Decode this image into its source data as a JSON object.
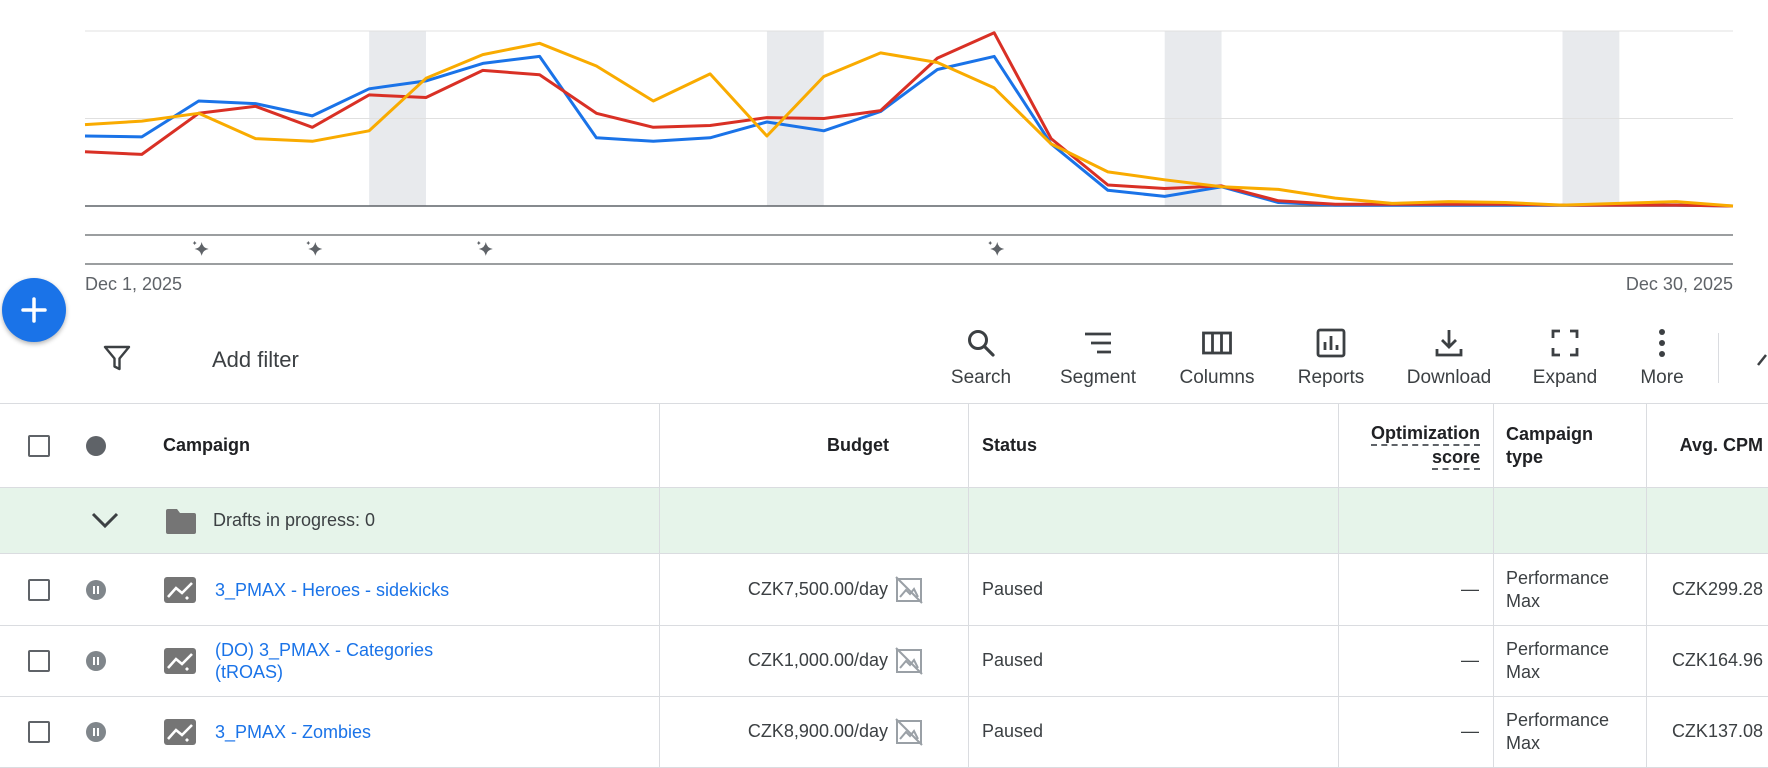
{
  "chart": {
    "date_start": "Dec 1, 2025",
    "date_end": "Dec 30, 2025",
    "series_colors": [
      "#1a73e8",
      "#d93025",
      "#f9ab00"
    ]
  },
  "chart_data": {
    "type": "line",
    "x": [
      "Dec 1",
      "Dec 2",
      "Dec 3",
      "Dec 4",
      "Dec 5",
      "Dec 6",
      "Dec 7",
      "Dec 8",
      "Dec 9",
      "Dec 10",
      "Dec 11",
      "Dec 12",
      "Dec 13",
      "Dec 14",
      "Dec 15",
      "Dec 16",
      "Dec 17",
      "Dec 18",
      "Dec 19",
      "Dec 20",
      "Dec 21",
      "Dec 22",
      "Dec 23",
      "Dec 24",
      "Dec 25",
      "Dec 26",
      "Dec 27",
      "Dec 28",
      "Dec 29",
      "Dec 30"
    ],
    "ylim": [
      0,
      2
    ],
    "grid": true,
    "weekend_bands": [
      "Dec 6",
      "Dec 13",
      "Dec 20",
      "Dec 27"
    ],
    "annotation_days": [
      "Dec 3",
      "Dec 5",
      "Dec 8",
      "Dec 17"
    ],
    "series": [
      {
        "color": "#1a73e8",
        "values": [
          0.8,
          0.79,
          1.2,
          1.17,
          1.03,
          1.34,
          1.43,
          1.63,
          1.71,
          0.78,
          0.74,
          0.78,
          0.96,
          0.86,
          1.08,
          1.56,
          1.71,
          0.71,
          0.18,
          0.11,
          0.22,
          0.04,
          0.01,
          0.01,
          0.01,
          0.01,
          0.01,
          0.01,
          0.01,
          0.0
        ]
      },
      {
        "color": "#d93025",
        "values": [
          0.62,
          0.59,
          1.06,
          1.14,
          0.9,
          1.27,
          1.24,
          1.55,
          1.5,
          1.06,
          0.9,
          0.92,
          1.01,
          1.0,
          1.09,
          1.69,
          1.98,
          0.77,
          0.24,
          0.2,
          0.23,
          0.06,
          0.02,
          0.02,
          0.02,
          0.02,
          0.01,
          0.01,
          0.01,
          0.0
        ]
      },
      {
        "color": "#f9ab00",
        "values": [
          0.93,
          0.97,
          1.06,
          0.77,
          0.74,
          0.86,
          1.46,
          1.73,
          1.86,
          1.6,
          1.2,
          1.51,
          0.8,
          1.48,
          1.75,
          1.64,
          1.35,
          0.71,
          0.39,
          0.3,
          0.22,
          0.19,
          0.09,
          0.03,
          0.05,
          0.04,
          0.01,
          0.03,
          0.05,
          0.0
        ]
      }
    ]
  },
  "toolbar": {
    "add_filter": "Add filter",
    "tools": [
      {
        "label": "Search",
        "icon": "search-icon"
      },
      {
        "label": "Segment",
        "icon": "segment-icon"
      },
      {
        "label": "Columns",
        "icon": "columns-icon"
      },
      {
        "label": "Reports",
        "icon": "reports-icon"
      },
      {
        "label": "Download",
        "icon": "download-icon"
      },
      {
        "label": "Expand",
        "icon": "expand-icon"
      },
      {
        "label": "More",
        "icon": "more-vert-icon"
      }
    ]
  },
  "table": {
    "headers": {
      "campaign": "Campaign",
      "budget": "Budget",
      "status": "Status",
      "optimization_score_1": "Optimization",
      "optimization_score_2": "score",
      "campaign_type_1": "Campaign",
      "campaign_type_2": "type",
      "avg_cpm": "Avg. CPM"
    },
    "drafts_label": "Drafts in progress: 0",
    "rows": [
      {
        "name_1": "3_PMAX - Heroes - sidekicks",
        "name_2": "",
        "budget": "CZK7,500.00/day",
        "status": "Paused",
        "opt_score": "—",
        "type_1": "Performance",
        "type_2": "Max",
        "avg_cpm": "CZK299.28"
      },
      {
        "name_1": "(DO) 3_PMAX - Categories",
        "name_2": "(tROAS)",
        "budget": "CZK1,000.00/day",
        "status": "Paused",
        "opt_score": "—",
        "type_1": "Performance",
        "type_2": "Max",
        "avg_cpm": "CZK164.96"
      },
      {
        "name_1": "3_PMAX - Zombies",
        "name_2": "",
        "budget": "CZK8,900.00/day",
        "status": "Paused",
        "opt_score": "—",
        "type_1": "Performance",
        "type_2": "Max",
        "avg_cpm": "CZK137.08"
      }
    ]
  }
}
